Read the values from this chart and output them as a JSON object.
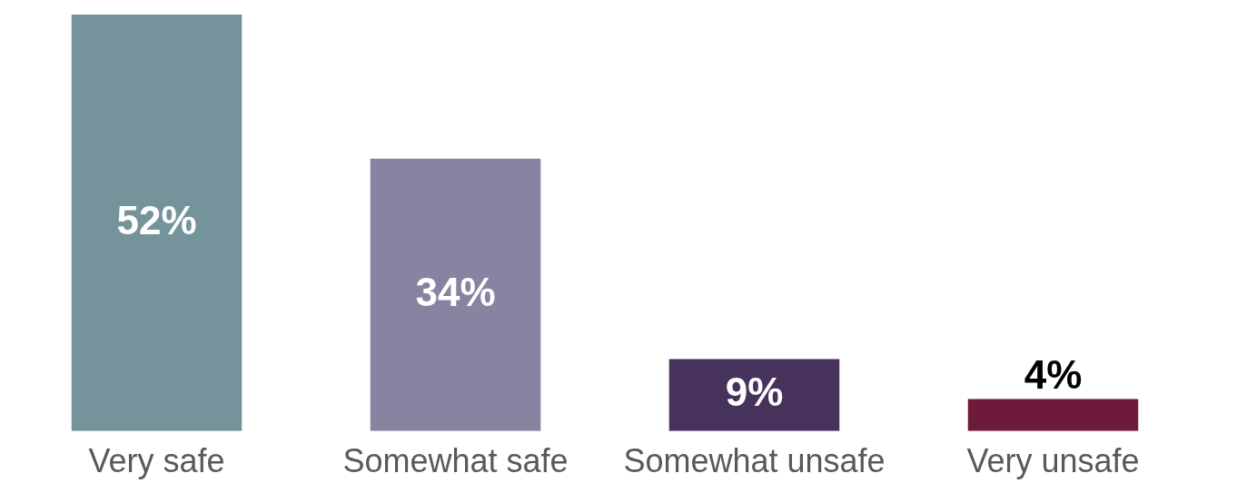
{
  "chart_data": {
    "type": "bar",
    "categories": [
      "Very safe",
      "Somewhat safe",
      "Somewhat unsafe",
      "Very unsafe"
    ],
    "values": [
      52,
      34,
      9,
      4
    ],
    "colors": [
      "#74939a",
      "#8783a0",
      "#47325c",
      "#6e1a3a"
    ],
    "value_labels": [
      "52%",
      "34%",
      "9%",
      "4%"
    ],
    "grid": false,
    "legend": false
  }
}
